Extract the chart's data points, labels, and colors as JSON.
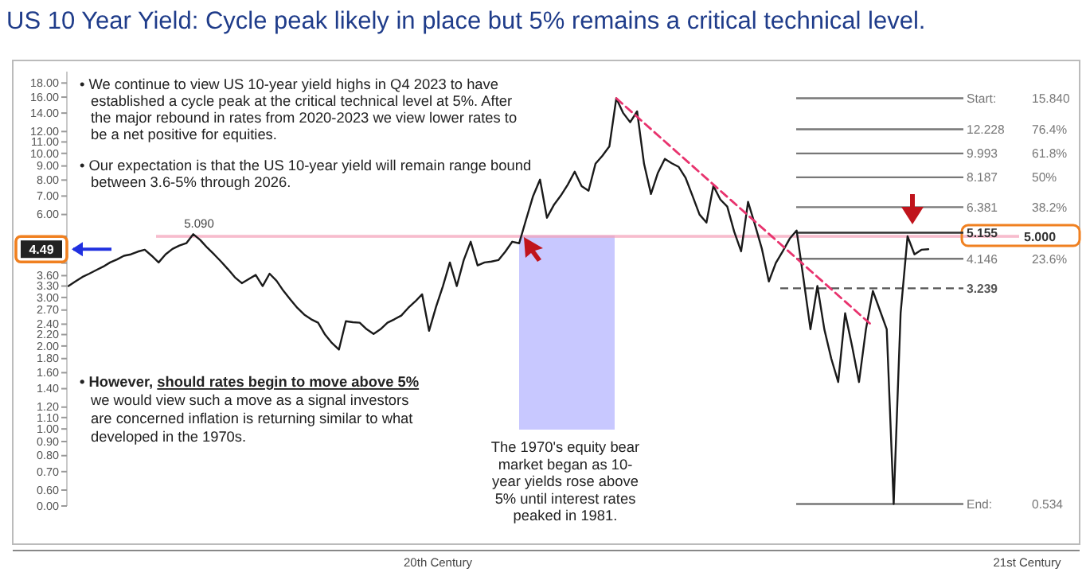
{
  "chart_data": {
    "type": "line",
    "title": "US 10 Year Yield: Cycle peak likely in place but 5% remains a critical technical level.",
    "categories": [
      null,
      null,
      null,
      null,
      null,
      null,
      null,
      null,
      null,
      null,
      null,
      null,
      null,
      null,
      null,
      null,
      null,
      null,
      null,
      null,
      null,
      null,
      null,
      null,
      null,
      null,
      null,
      null,
      null,
      null,
      null,
      null,
      null,
      null,
      null,
      null,
      null,
      null,
      null,
      null,
      null,
      null,
      null,
      null,
      null,
      null,
      null,
      null,
      null,
      null,
      null,
      null,
      null,
      null,
      null,
      null,
      null,
      null,
      null,
      null,
      null,
      null,
      null,
      null,
      null,
      null,
      null,
      null,
      null,
      null,
      null,
      null,
      null,
      null,
      null,
      null,
      null,
      null,
      null,
      null,
      null,
      null,
      null,
      null,
      null,
      null,
      null,
      null,
      null,
      null,
      null,
      null,
      null,
      null,
      null,
      null,
      null,
      null,
      null,
      null,
      null,
      null,
      null,
      null,
      null,
      null,
      null,
      null,
      null,
      null,
      null,
      null,
      null,
      null,
      null,
      null,
      null,
      null,
      null,
      null,
      null,
      null,
      null,
      null,
      null
    ],
    "series": [
      {
        "color": "#1a1a1a",
        "values": [
          3.3,
          3.43,
          3.56,
          3.66,
          3.77,
          3.88,
          4.02,
          4.12,
          4.25,
          4.3,
          4.4,
          4.47,
          4.25,
          4.02,
          4.3,
          4.5,
          4.63,
          4.72,
          5.09,
          4.85,
          4.55,
          4.3,
          4.05,
          3.8,
          3.55,
          3.38,
          3.5,
          3.62,
          3.3,
          3.66,
          3.45,
          3.17,
          2.95,
          2.75,
          2.6,
          2.5,
          2.43,
          2.2,
          2.05,
          1.94,
          2.46,
          2.44,
          2.43,
          2.3,
          2.21,
          2.3,
          2.43,
          2.5,
          2.58,
          2.75,
          2.9,
          3.08,
          2.27,
          2.77,
          3.3,
          4.02,
          3.3,
          4.1,
          4.78,
          3.92,
          4.02,
          4.05,
          4.1,
          4.4,
          4.78,
          4.72,
          5.76,
          7.0,
          8.03,
          5.84,
          6.5,
          7.03,
          7.7,
          8.58,
          7.6,
          7.32,
          9.17,
          9.8,
          10.6,
          15.84,
          14.0,
          12.97,
          14.2,
          9.17,
          7.12,
          8.5,
          9.55,
          9.2,
          8.93,
          8.14,
          7.0,
          6.0,
          5.61,
          7.62,
          6.8,
          6.41,
          5.2,
          4.41,
          6.67,
          5.5,
          4.5,
          3.43,
          4.0,
          4.41,
          4.9,
          5.25,
          3.5,
          2.3,
          3.3,
          2.3,
          1.8,
          1.48,
          2.63,
          2.0,
          1.48,
          2.3,
          3.17,
          2.7,
          2.3,
          0.534,
          2.63,
          5.0,
          4.3,
          4.47,
          4.49
        ]
      },
      {
        "type": "line",
        "color": "#e8336e",
        "line_style": "dashed",
        "values": [
          null,
          null,
          null,
          null,
          null,
          null,
          null,
          null,
          null,
          null,
          null,
          null,
          null,
          null,
          null,
          null,
          null,
          null,
          null,
          null,
          null,
          null,
          null,
          null,
          null,
          null,
          null,
          null,
          null,
          null,
          null,
          null,
          null,
          null,
          null,
          null,
          null,
          null,
          null,
          null,
          null,
          null,
          null,
          null,
          null,
          null,
          null,
          null,
          null,
          null,
          null,
          null,
          null,
          null,
          null,
          null,
          null,
          null,
          null,
          null,
          null,
          null,
          null,
          null,
          null,
          null,
          null,
          null,
          null,
          null,
          null,
          null,
          null,
          null,
          null,
          null,
          null,
          null,
          null,
          15.84,
          null,
          null,
          null,
          null,
          null,
          null,
          null,
          null,
          null,
          null,
          null,
          null,
          null,
          null,
          null,
          null,
          null,
          null,
          null,
          null,
          null,
          null,
          null,
          null,
          null,
          null,
          null,
          null,
          null,
          null,
          null,
          null,
          null,
          null,
          null,
          null,
          2.36,
          null,
          null,
          null,
          null,
          null,
          null,
          null,
          null
        ]
      }
    ],
    "ylim": [
      0,
      19.8
    ],
    "log": true,
    "yticks": [
      {
        "value": 18,
        "label": "18.00"
      },
      {
        "value": 16,
        "label": "16.00"
      },
      {
        "value": 14,
        "label": "14.00"
      },
      {
        "value": 12,
        "label": "12.00"
      },
      {
        "value": 11,
        "label": "11.00"
      },
      {
        "value": 10,
        "label": "10.00"
      },
      {
        "value": 9,
        "label": "9.00"
      },
      {
        "value": 8,
        "label": "8.00"
      },
      {
        "value": 7,
        "label": "7.00"
      },
      {
        "value": 6,
        "label": "6.00"
      },
      {
        "value": 5,
        "label": null
      },
      {
        "value": 4,
        "label": null
      },
      {
        "value": 3.6,
        "label": "3.60"
      },
      {
        "value": 3.3,
        "label": "3.30"
      },
      {
        "value": 3,
        "label": "3.00"
      },
      {
        "value": 2.7,
        "label": "2.70"
      },
      {
        "value": 2.4,
        "label": "2.40"
      },
      {
        "value": 2.2,
        "label": "2.20"
      },
      {
        "value": 2,
        "label": "2.00"
      },
      {
        "value": 1.8,
        "label": "1.80"
      },
      {
        "value": 1.6,
        "label": "1.60"
      },
      {
        "value": 1.4,
        "label": "1.40"
      },
      {
        "value": 1.2,
        "label": "1.20"
      },
      {
        "value": 1.1,
        "label": "1.10"
      },
      {
        "value": 1,
        "label": "1.00"
      },
      {
        "value": 0.9,
        "label": "0.90"
      },
      {
        "value": 0.8,
        "label": "0.80"
      },
      {
        "value": 0.7,
        "label": "0.70"
      },
      {
        "value": 0.6,
        "label": "0.60"
      },
      {
        "value": 0,
        "label": "0.00"
      }
    ],
    "ref_lines": [
      {
        "axis": "y",
        "value": 15.84,
        "label": "Start: 15.840",
        "color": "#777777"
      },
      {
        "axis": "y",
        "value": 12.228,
        "label": "12.228 76.4%",
        "color": "#777777"
      },
      {
        "axis": "y",
        "value": 9.993,
        "label": "9.993 61.8%",
        "color": "#777777"
      },
      {
        "axis": "y",
        "value": 8.187,
        "label": "8.187 50%",
        "color": "#777777"
      },
      {
        "axis": "y",
        "value": 6.381,
        "label": "6.381 38.2%",
        "color": "#777777"
      },
      {
        "axis": "y",
        "value": 5.155,
        "label": "5.155",
        "color": "#333333"
      },
      {
        "axis": "y",
        "value": 4.146,
        "label": "4.146 23.6%",
        "color": "#777777"
      },
      {
        "axis": "y",
        "value": 3.239,
        "label": "3.239",
        "color": "#555555",
        "line_style": "dashed"
      },
      {
        "axis": "y",
        "value": 0.534,
        "label": "End: 0.534",
        "color": "#777777"
      }
    ],
    "bands": [
      {
        "axis": "y",
        "from": 4.94,
        "to": 5.06,
        "label": "5.000",
        "color": "#f4a0b8"
      }
    ],
    "annotations": [
      "• We continue to view US 10-year yield highs in Q4 2023 to have\nestablished a cycle peak at the critical technical level at 5%. After\nthe major rebound in rates from 2020-2023 we view lower rates to\nbe a net positive for equities.",
      "• Our expectation is that the US 10-year yield will remain range bound\nbetween 3.6-5% through 2026.",
      "• However, should rates begin to move above 5%\nwe would view such a move as a signal investors\nare concerned inflation is returning similar to what\ndeveloped in the 1970s.",
      "The 1970's equity bear\nmarket began as 10-\nyear yields rose above\n5% until interest rates\npeaked in 1981.",
      "20th Century",
      "21st Century",
      {
        "text": "5.090",
        "y": 5.09
      },
      {
        "text": "4.49",
        "y": 4.49
      }
    ]
  }
}
